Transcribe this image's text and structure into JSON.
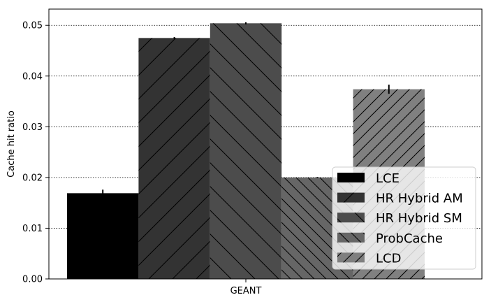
{
  "chart_data": {
    "type": "bar",
    "title": "",
    "xlabel": "",
    "ylabel": "Cache hit ratio",
    "categories": [
      "GEANT"
    ],
    "ylim": [
      0,
      0.0532
    ],
    "yticks": [
      "0.00",
      "0.01",
      "0.02",
      "0.03",
      "0.04",
      "0.05"
    ],
    "grid": "horizontal dotted",
    "legend_position": "lower-right",
    "series": [
      {
        "name": "LCE",
        "values": [
          0.0169
        ],
        "err": [
          0.0007
        ],
        "color": "#000000",
        "hatch": "none"
      },
      {
        "name": "HR Hybrid AM",
        "values": [
          0.0475
        ],
        "err": [
          0.0002
        ],
        "color": "#333333",
        "hatch": "diag-right"
      },
      {
        "name": "HR Hybrid SM",
        "values": [
          0.0504
        ],
        "err": [
          0.0002
        ],
        "color": "#4c4c4c",
        "hatch": "diag-left"
      },
      {
        "name": "ProbCache",
        "values": [
          0.02
        ],
        "err": [
          0.0001
        ],
        "color": "#666666",
        "hatch": "diag-left-dense"
      },
      {
        "name": "LCD",
        "values": [
          0.0374
        ],
        "err": [
          0.0009
        ],
        "color": "#808080",
        "hatch": "diag-right-dense"
      }
    ]
  }
}
